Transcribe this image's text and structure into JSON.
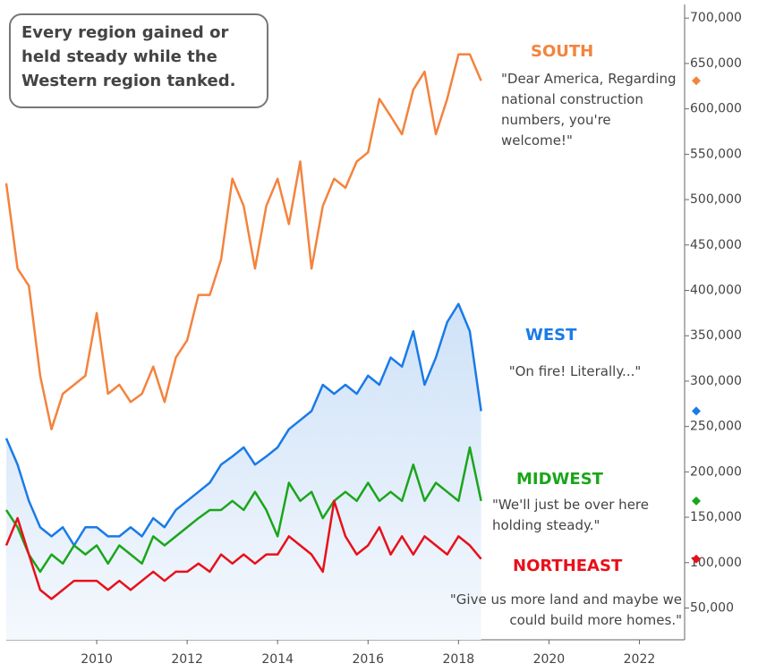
{
  "chart_data": {
    "type": "line",
    "annotation": "Every region gained or held steady while the Western region tanked.",
    "x": [
      2008.0,
      2008.25,
      2008.5,
      2008.75,
      2009.0,
      2009.25,
      2009.5,
      2009.75,
      2010.0,
      2010.25,
      2010.5,
      2010.75,
      2011.0,
      2011.25,
      2011.5,
      2011.75,
      2012.0,
      2012.25,
      2012.5,
      2012.75,
      2013.0,
      2013.25,
      2013.5,
      2013.75,
      2014.0,
      2014.25,
      2014.5,
      2014.75,
      2015.0,
      2015.25,
      2015.5,
      2015.75,
      2016.0,
      2016.25,
      2016.5,
      2016.75,
      2017.0,
      2017.25,
      2017.5,
      2017.75,
      2018.0,
      2018.25,
      2018.5
    ],
    "series": [
      {
        "name": "SOUTH",
        "quote": "\"Dear America, Regarding national construction numbers, you're welcome!\"",
        "color": "#f4833d",
        "values": [
          518000,
          424000,
          405000,
          306000,
          247000,
          286000,
          296000,
          306000,
          375000,
          286000,
          296000,
          277000,
          286000,
          316000,
          277000,
          326000,
          345000,
          395000,
          395000,
          434000,
          523000,
          493000,
          424000,
          493000,
          523000,
          473000,
          542000,
          424000,
          493000,
          523000,
          513000,
          542000,
          552000,
          611000,
          592000,
          572000,
          621000,
          641000,
          572000,
          611000,
          660000,
          660000,
          631000
        ]
      },
      {
        "name": "WEST",
        "quote": "\"On fire!  Literally...\"",
        "color": "#1a7ae8",
        "area": true,
        "values": [
          237000,
          208000,
          168000,
          139000,
          129000,
          139000,
          119000,
          139000,
          139000,
          129000,
          129000,
          139000,
          129000,
          149000,
          139000,
          158000,
          168000,
          178000,
          188000,
          208000,
          217000,
          227000,
          208000,
          217000,
          227000,
          247000,
          257000,
          267000,
          296000,
          286000,
          296000,
          286000,
          306000,
          296000,
          326000,
          316000,
          355000,
          296000,
          326000,
          365000,
          385000,
          355000,
          267000
        ]
      },
      {
        "name": "MIDWEST",
        "quote": "\"We'll just be over here holding steady.\"",
        "color": "#1aa61a",
        "values": [
          158000,
          139000,
          109000,
          90000,
          109000,
          99000,
          119000,
          109000,
          119000,
          99000,
          119000,
          109000,
          99000,
          129000,
          119000,
          129000,
          139000,
          149000,
          158000,
          158000,
          168000,
          158000,
          178000,
          158000,
          129000,
          188000,
          168000,
          178000,
          149000,
          168000,
          178000,
          168000,
          188000,
          168000,
          178000,
          168000,
          208000,
          168000,
          188000,
          178000,
          168000,
          227000,
          168000
        ]
      },
      {
        "name": "NORTHEAST",
        "quote": "\"Give us more land and maybe we could build more homes.\"",
        "color": "#e8101a",
        "values": [
          119000,
          149000,
          109000,
          70000,
          60000,
          70000,
          80000,
          80000,
          80000,
          70000,
          80000,
          70000,
          80000,
          90000,
          80000,
          90000,
          90000,
          99000,
          90000,
          109000,
          99000,
          109000,
          99000,
          109000,
          109000,
          129000,
          119000,
          109000,
          90000,
          168000,
          129000,
          109000,
          119000,
          139000,
          109000,
          129000,
          109000,
          129000,
          119000,
          109000,
          129000,
          119000,
          104000
        ]
      }
    ],
    "xlim": [
      2008,
      2023
    ],
    "xticks": [
      2010,
      2012,
      2014,
      2016,
      2018,
      2020,
      2022
    ],
    "ylim": [
      15000,
      715000
    ],
    "yticks": [
      {
        "value": 50000,
        "label": "50,000"
      },
      {
        "value": 100000,
        "label": "100,000"
      },
      {
        "value": 150000,
        "label": "150,000"
      },
      {
        "value": 200000,
        "label": "200,000"
      },
      {
        "value": 250000,
        "label": "250,000"
      },
      {
        "value": 300000,
        "label": "300,000"
      },
      {
        "value": 350000,
        "label": "350,000"
      },
      {
        "value": 400000,
        "label": "400,000"
      },
      {
        "value": 450000,
        "label": "450,000"
      },
      {
        "value": 500000,
        "label": "500,000"
      },
      {
        "value": 550000,
        "label": "550,000"
      },
      {
        "value": 600000,
        "label": "600,000"
      },
      {
        "value": 650000,
        "label": "650,000"
      },
      {
        "value": 700000,
        "label": "700,000"
      }
    ],
    "grid": false
  }
}
